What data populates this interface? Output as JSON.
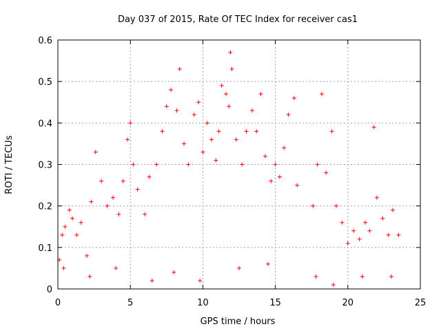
{
  "chart_data": {
    "type": "scatter",
    "title": "Day 037 of 2015, Rate Of TEC Index for receiver cas1",
    "xlabel": "GPS time / hours",
    "ylabel": "ROTI / TECUs",
    "xlim": [
      0,
      25
    ],
    "ylim": [
      0,
      0.6
    ],
    "xticks": [
      0,
      5,
      10,
      15,
      20,
      25
    ],
    "xtick_labels": [
      "0",
      "5",
      "10",
      "15",
      "20",
      "25"
    ],
    "yticks": [
      0,
      0.1,
      0.2,
      0.3,
      0.4,
      0.5,
      0.6
    ],
    "ytick_labels": [
      "0",
      "0.1",
      "0.2",
      "0.3",
      "0.4",
      "0.5",
      "0.6"
    ],
    "grid": true,
    "marker": "+",
    "color": "#ff0000",
    "series": [
      {
        "points": [
          [
            0.1,
            0.07
          ],
          [
            0.3,
            0.13
          ],
          [
            0.5,
            0.15
          ],
          [
            0.8,
            0.19
          ],
          [
            1.0,
            0.17
          ],
          [
            1.3,
            0.13
          ],
          [
            1.6,
            0.16
          ],
          [
            2.0,
            0.08
          ],
          [
            2.3,
            0.21
          ],
          [
            2.6,
            0.33
          ],
          [
            3.0,
            0.26
          ],
          [
            3.4,
            0.2
          ],
          [
            3.8,
            0.22
          ],
          [
            4.2,
            0.18
          ],
          [
            4.5,
            0.26
          ],
          [
            4.8,
            0.36
          ],
          [
            5.0,
            0.4
          ],
          [
            5.2,
            0.3
          ],
          [
            5.5,
            0.24
          ],
          [
            6.0,
            0.18
          ],
          [
            6.3,
            0.27
          ],
          [
            6.8,
            0.3
          ],
          [
            7.2,
            0.38
          ],
          [
            7.5,
            0.44
          ],
          [
            7.8,
            0.48
          ],
          [
            8.2,
            0.43
          ],
          [
            8.4,
            0.53
          ],
          [
            8.7,
            0.35
          ],
          [
            9.0,
            0.3
          ],
          [
            9.4,
            0.42
          ],
          [
            9.7,
            0.45
          ],
          [
            10.0,
            0.33
          ],
          [
            10.3,
            0.4
          ],
          [
            10.6,
            0.36
          ],
          [
            10.9,
            0.31
          ],
          [
            11.1,
            0.38
          ],
          [
            11.3,
            0.49
          ],
          [
            11.6,
            0.47
          ],
          [
            11.8,
            0.44
          ],
          [
            11.9,
            0.57
          ],
          [
            12.0,
            0.53
          ],
          [
            12.3,
            0.36
          ],
          [
            12.7,
            0.3
          ],
          [
            13.0,
            0.38
          ],
          [
            13.4,
            0.43
          ],
          [
            13.7,
            0.38
          ],
          [
            14.0,
            0.47
          ],
          [
            14.3,
            0.32
          ],
          [
            14.7,
            0.26
          ],
          [
            15.0,
            0.3
          ],
          [
            15.3,
            0.27
          ],
          [
            15.6,
            0.34
          ],
          [
            15.9,
            0.42
          ],
          [
            16.3,
            0.46
          ],
          [
            16.5,
            0.25
          ],
          [
            17.6,
            0.2
          ],
          [
            17.9,
            0.3
          ],
          [
            18.2,
            0.47
          ],
          [
            18.5,
            0.28
          ],
          [
            18.9,
            0.38
          ],
          [
            19.2,
            0.2
          ],
          [
            19.6,
            0.16
          ],
          [
            20.0,
            0.11
          ],
          [
            20.4,
            0.14
          ],
          [
            20.8,
            0.12
          ],
          [
            21.2,
            0.16
          ],
          [
            21.5,
            0.14
          ],
          [
            21.8,
            0.39
          ],
          [
            22.0,
            0.22
          ],
          [
            22.4,
            0.17
          ],
          [
            22.8,
            0.13
          ],
          [
            23.1,
            0.19
          ],
          [
            23.5,
            0.13
          ],
          [
            0.4,
            0.05
          ],
          [
            2.2,
            0.03
          ],
          [
            4.0,
            0.05
          ],
          [
            6.5,
            0.02
          ],
          [
            8.0,
            0.04
          ],
          [
            9.8,
            0.02
          ],
          [
            12.5,
            0.05
          ],
          [
            14.5,
            0.06
          ],
          [
            17.8,
            0.03
          ],
          [
            19.0,
            0.01
          ],
          [
            21.0,
            0.03
          ],
          [
            23.0,
            0.03
          ]
        ]
      }
    ]
  }
}
